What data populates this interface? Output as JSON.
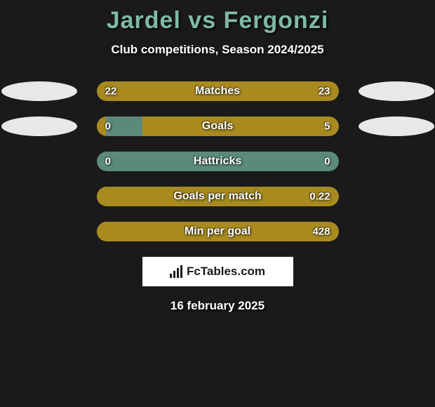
{
  "title": "Jardel vs Fergonzi",
  "subtitle": "Club competitions, Season 2024/2025",
  "background_color": "#1a1a1a",
  "title_color": "#7fb8a8",
  "oval_left_color": "#e8e8e8",
  "oval_right_color": "#e8e8e8",
  "bar_bg_color": "#5c8a7a",
  "bar_left_fill": "#a88a1f",
  "bar_right_fill": "#a88a1f",
  "rows": [
    {
      "name": "Matches",
      "left_value": "22",
      "right_value": "23",
      "left_pct": 49,
      "right_pct": 51,
      "show_ovals": true
    },
    {
      "name": "Goals",
      "left_value": "0",
      "right_value": "5",
      "left_pct": 4,
      "right_pct": 81,
      "show_ovals": true
    },
    {
      "name": "Hattricks",
      "left_value": "0",
      "right_value": "0",
      "left_pct": 0,
      "right_pct": 0,
      "show_ovals": false
    },
    {
      "name": "Goals per match",
      "left_value": "",
      "right_value": "0.22",
      "left_pct": 0,
      "right_pct": 100,
      "show_ovals": false
    },
    {
      "name": "Min per goal",
      "left_value": "",
      "right_value": "428",
      "left_pct": 0,
      "right_pct": 100,
      "show_ovals": false
    }
  ],
  "logo_text": "FcTables.com",
  "date_text": "16 february 2025"
}
